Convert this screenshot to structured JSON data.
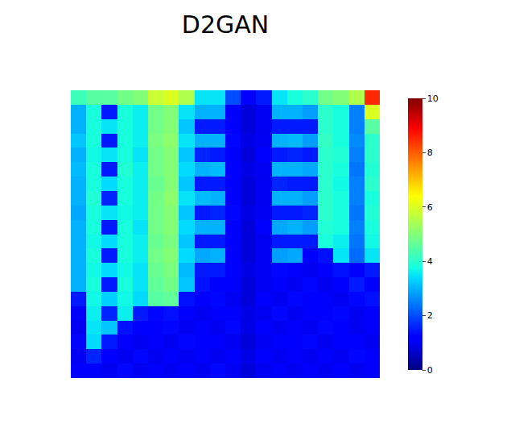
{
  "chart_data": {
    "type": "heatmap",
    "title": "D2GAN",
    "color": "jet",
    "tick_labels": false,
    "colorbar_range": [
      0,
      10
    ],
    "colorbar_ticks": [
      0,
      2,
      4,
      6,
      8,
      10
    ],
    "cells": [
      [
        4.2,
        4.5,
        4.5,
        4.8,
        5,
        5.8,
        6,
        5.5,
        3.5,
        3.5,
        2,
        1.2,
        1.5,
        3.5,
        3.8,
        4,
        4.8,
        5,
        5.5,
        8.5
      ],
      [
        3,
        3.8,
        1.5,
        3.8,
        3.6,
        4.8,
        5,
        3.5,
        3,
        3,
        1.2,
        0.8,
        1,
        3,
        3,
        2.8,
        4,
        3.8,
        2.5,
        6
      ],
      [
        3,
        3.8,
        3.5,
        3.8,
        3.6,
        4.8,
        5,
        3.2,
        1.5,
        1.5,
        1.2,
        0.8,
        1,
        1.5,
        1.5,
        1.5,
        4,
        3.8,
        2.5,
        4.5
      ],
      [
        3.2,
        3.8,
        1.5,
        3.8,
        3.6,
        4.9,
        5.1,
        3.5,
        3,
        3,
        1.3,
        0.9,
        1,
        3,
        3.1,
        2.8,
        4.1,
        3.8,
        2.6,
        4
      ],
      [
        3,
        3.7,
        3.5,
        3.8,
        3.5,
        4.8,
        5,
        3.2,
        1.6,
        1.5,
        1.1,
        0.8,
        1.1,
        1.5,
        1.6,
        1.5,
        4,
        3.9,
        2.5,
        4
      ],
      [
        3.1,
        3.8,
        1.5,
        3.9,
        3.6,
        4.8,
        5,
        3.4,
        3,
        3.1,
        1.2,
        0.9,
        1,
        3,
        3,
        2.9,
        4,
        3.8,
        2.4,
        3.9
      ],
      [
        3,
        3.8,
        3.4,
        3.8,
        3.6,
        4.7,
        5,
        3.2,
        1.5,
        1.5,
        1.2,
        0.8,
        1,
        1.6,
        1.5,
        1.5,
        4,
        3.7,
        2.5,
        4
      ],
      [
        3,
        3.9,
        1.6,
        3.8,
        3.6,
        4.8,
        5.1,
        3.5,
        3.1,
        3,
        1.2,
        0.8,
        1,
        3,
        3,
        2.8,
        4,
        3.8,
        2.5,
        3.8
      ],
      [
        2.9,
        3.8,
        3.5,
        3.7,
        3.6,
        4.8,
        5,
        3.2,
        1.5,
        1.6,
        1.3,
        0.9,
        1,
        1.5,
        1.5,
        1.6,
        4,
        3.8,
        2.4,
        3.9
      ],
      [
        3,
        3.8,
        1.5,
        3.8,
        3.5,
        4.8,
        5,
        3.4,
        3,
        3,
        1.2,
        0.8,
        1.1,
        2.9,
        3,
        2.8,
        3.9,
        3.8,
        2.5,
        3.8
      ],
      [
        3,
        3.7,
        3.4,
        3.8,
        3.6,
        4.7,
        4.9,
        3.2,
        1.5,
        1.5,
        1.2,
        0.8,
        1,
        1.5,
        1.5,
        1.5,
        3.8,
        3.6,
        2.4,
        3.7
      ],
      [
        3,
        3.8,
        1.5,
        3.8,
        3.6,
        4.8,
        5,
        3.4,
        2.9,
        3,
        1.2,
        0.8,
        1,
        2.8,
        2.9,
        1.2,
        1.4,
        3.5,
        2.3,
        3.5
      ],
      [
        3,
        3.7,
        3.4,
        3.7,
        3.5,
        4.7,
        4.9,
        3.1,
        1.5,
        1.5,
        1.1,
        0.9,
        1,
        1.3,
        1.1,
        1,
        1.2,
        1.4,
        1.2,
        1.5
      ],
      [
        3,
        3.8,
        1.5,
        3.8,
        3.5,
        4.6,
        4.8,
        3.2,
        1.4,
        1.2,
        1.1,
        0.8,
        1,
        1.2,
        1,
        1.3,
        1,
        1.2,
        1.5,
        1.2
      ],
      [
        1.5,
        3.7,
        3.3,
        3.7,
        3.4,
        4.5,
        4.6,
        1.4,
        1.2,
        1.3,
        1,
        0.8,
        1.2,
        1,
        1.3,
        1.1,
        1.2,
        1,
        1.3,
        1.4
      ],
      [
        1.2,
        3.6,
        1.6,
        3.6,
        1.5,
        1.3,
        1.4,
        1.2,
        1,
        1.2,
        1.1,
        0.9,
        1,
        1.3,
        1,
        1.2,
        1.1,
        1.3,
        1,
        1.2
      ],
      [
        1,
        3.5,
        3.2,
        1.4,
        1.2,
        1.1,
        1.3,
        1,
        1.2,
        1,
        1.3,
        0.9,
        1.1,
        1,
        1.2,
        1,
        1.3,
        1.1,
        1,
        1.1
      ],
      [
        1.3,
        3.4,
        1.5,
        1.2,
        1,
        1.2,
        1,
        1.3,
        1.1,
        1.2,
        1,
        0.8,
        1,
        1.2,
        1.1,
        1.3,
        1,
        1.2,
        1.1,
        1
      ],
      [
        1,
        1.6,
        1.2,
        1,
        1.3,
        1,
        1.1,
        1,
        1.2,
        1,
        1.1,
        0.9,
        1.2,
        1,
        1.1,
        1,
        1.2,
        1,
        1.3,
        1.1
      ],
      [
        1.2,
        1.1,
        1,
        1.3,
        1,
        1.2,
        1,
        1.1,
        1,
        1.3,
        1,
        0.8,
        1,
        1.1,
        1,
        1.2,
        1,
        1.1,
        1,
        1.2
      ]
    ]
  }
}
